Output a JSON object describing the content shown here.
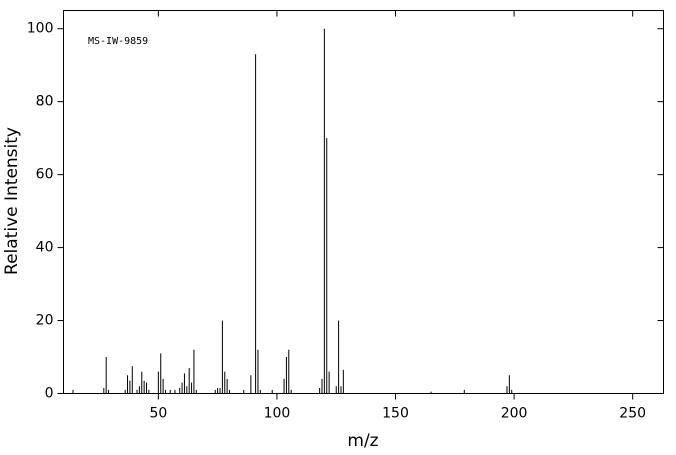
{
  "chart_data": {
    "type": "spectrum",
    "annotation": "MS-IW-9859",
    "xlabel": "m/z",
    "ylabel": "Relative Intensity",
    "x": [
      14,
      27,
      28,
      29,
      36,
      37,
      38,
      39,
      41,
      42,
      43,
      44,
      45,
      46,
      50,
      51,
      52,
      53,
      55,
      57,
      59,
      60,
      61,
      62,
      63,
      64,
      65,
      66,
      74,
      75,
      76,
      77,
      78,
      79,
      80,
      86,
      89,
      91,
      92,
      93,
      98,
      103,
      104,
      105,
      106,
      118,
      119,
      120,
      121,
      122,
      125,
      126,
      127,
      128,
      165,
      179,
      197,
      198,
      199
    ],
    "values": [
      1,
      1.5,
      10,
      1,
      1,
      5,
      3.5,
      7.5,
      1,
      2,
      6,
      3.5,
      3,
      1,
      6,
      11,
      4,
      1,
      1,
      1,
      1.5,
      3,
      5.5,
      2,
      7,
      3,
      12,
      1,
      1,
      1.5,
      1.5,
      20,
      6,
      4,
      1,
      1,
      5,
      93,
      12,
      1,
      1,
      4,
      10,
      12,
      1,
      1.5,
      4,
      100,
      70,
      6,
      2,
      20,
      2,
      6.5,
      0.5,
      1,
      2,
      5,
      1
    ],
    "color": "#000000",
    "xlim": [
      10,
      263
    ],
    "xticks": [
      50,
      100,
      150,
      200,
      250
    ],
    "ylim": [
      0,
      105
    ],
    "yticks": [
      0,
      20,
      40,
      60,
      80,
      100
    ]
  }
}
